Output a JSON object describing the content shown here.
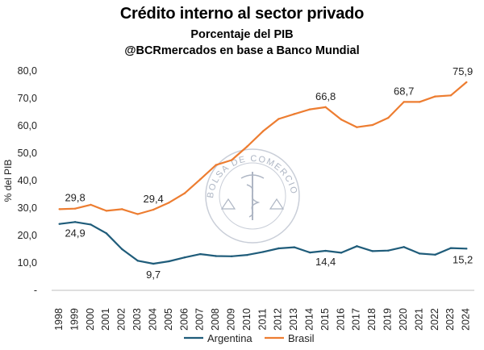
{
  "chart_data": {
    "type": "line",
    "title": "Crédito interno al sector privado",
    "subtitle_1": "Porcentaje del PIB",
    "subtitle_2": "@BCRmercados en base a Banco Mundial",
    "ylabel": "% del PIB",
    "xlabel": "",
    "ylim": [
      0,
      80
    ],
    "yticks": [
      "-",
      "10,0",
      "20,0",
      "30,0",
      "40,0",
      "50,0",
      "60,0",
      "70,0",
      "80,0"
    ],
    "categories": [
      "1998",
      "1999",
      "2000",
      "2001",
      "2002",
      "2003",
      "2004",
      "2005",
      "2006",
      "2007",
      "2008",
      "2009",
      "2010",
      "2011",
      "2012",
      "2013",
      "2014",
      "2015",
      "2016",
      "2017",
      "2018",
      "2019",
      "2020",
      "2021",
      "2022",
      "2023",
      "2024"
    ],
    "grid": false,
    "legend_position": "bottom",
    "series": [
      {
        "name": "Argentina",
        "color": "#1f5c7a",
        "values": [
          24.2,
          24.9,
          24.0,
          20.8,
          15.0,
          10.8,
          9.7,
          10.6,
          12.0,
          13.2,
          12.5,
          12.4,
          12.9,
          14.0,
          15.3,
          15.7,
          13.8,
          14.4,
          13.7,
          16.1,
          14.3,
          14.5,
          15.8,
          13.4,
          13.0,
          15.4,
          15.2
        ]
      },
      {
        "name": "Brasil",
        "color": "#ed7d31",
        "values": [
          29.6,
          29.8,
          31.2,
          29.0,
          29.6,
          27.8,
          29.4,
          32.0,
          35.4,
          40.5,
          45.7,
          47.5,
          52.5,
          58.0,
          62.5,
          64.3,
          66.0,
          66.8,
          62.3,
          59.5,
          60.3,
          62.9,
          68.7,
          68.7,
          70.7,
          71.1,
          75.9
        ]
      }
    ],
    "annotations": [
      {
        "series": 1,
        "index": 1,
        "text": "29,8",
        "pos": "above"
      },
      {
        "series": 1,
        "index": 6,
        "text": "29,4",
        "pos": "above"
      },
      {
        "series": 1,
        "index": 17,
        "text": "66,8",
        "pos": "above"
      },
      {
        "series": 1,
        "index": 22,
        "text": "68,7",
        "pos": "above"
      },
      {
        "series": 1,
        "index": 26,
        "text": "75,9",
        "pos": "above"
      },
      {
        "series": 0,
        "index": 1,
        "text": "24,9",
        "pos": "below"
      },
      {
        "series": 0,
        "index": 6,
        "text": "9,7",
        "pos": "below"
      },
      {
        "series": 0,
        "index": 17,
        "text": "14,4",
        "pos": "below"
      },
      {
        "series": 0,
        "index": 26,
        "text": "15,2",
        "pos": "below"
      }
    ],
    "watermark_text": "BOLSA DE COMERCIO DE ROSARIO"
  }
}
